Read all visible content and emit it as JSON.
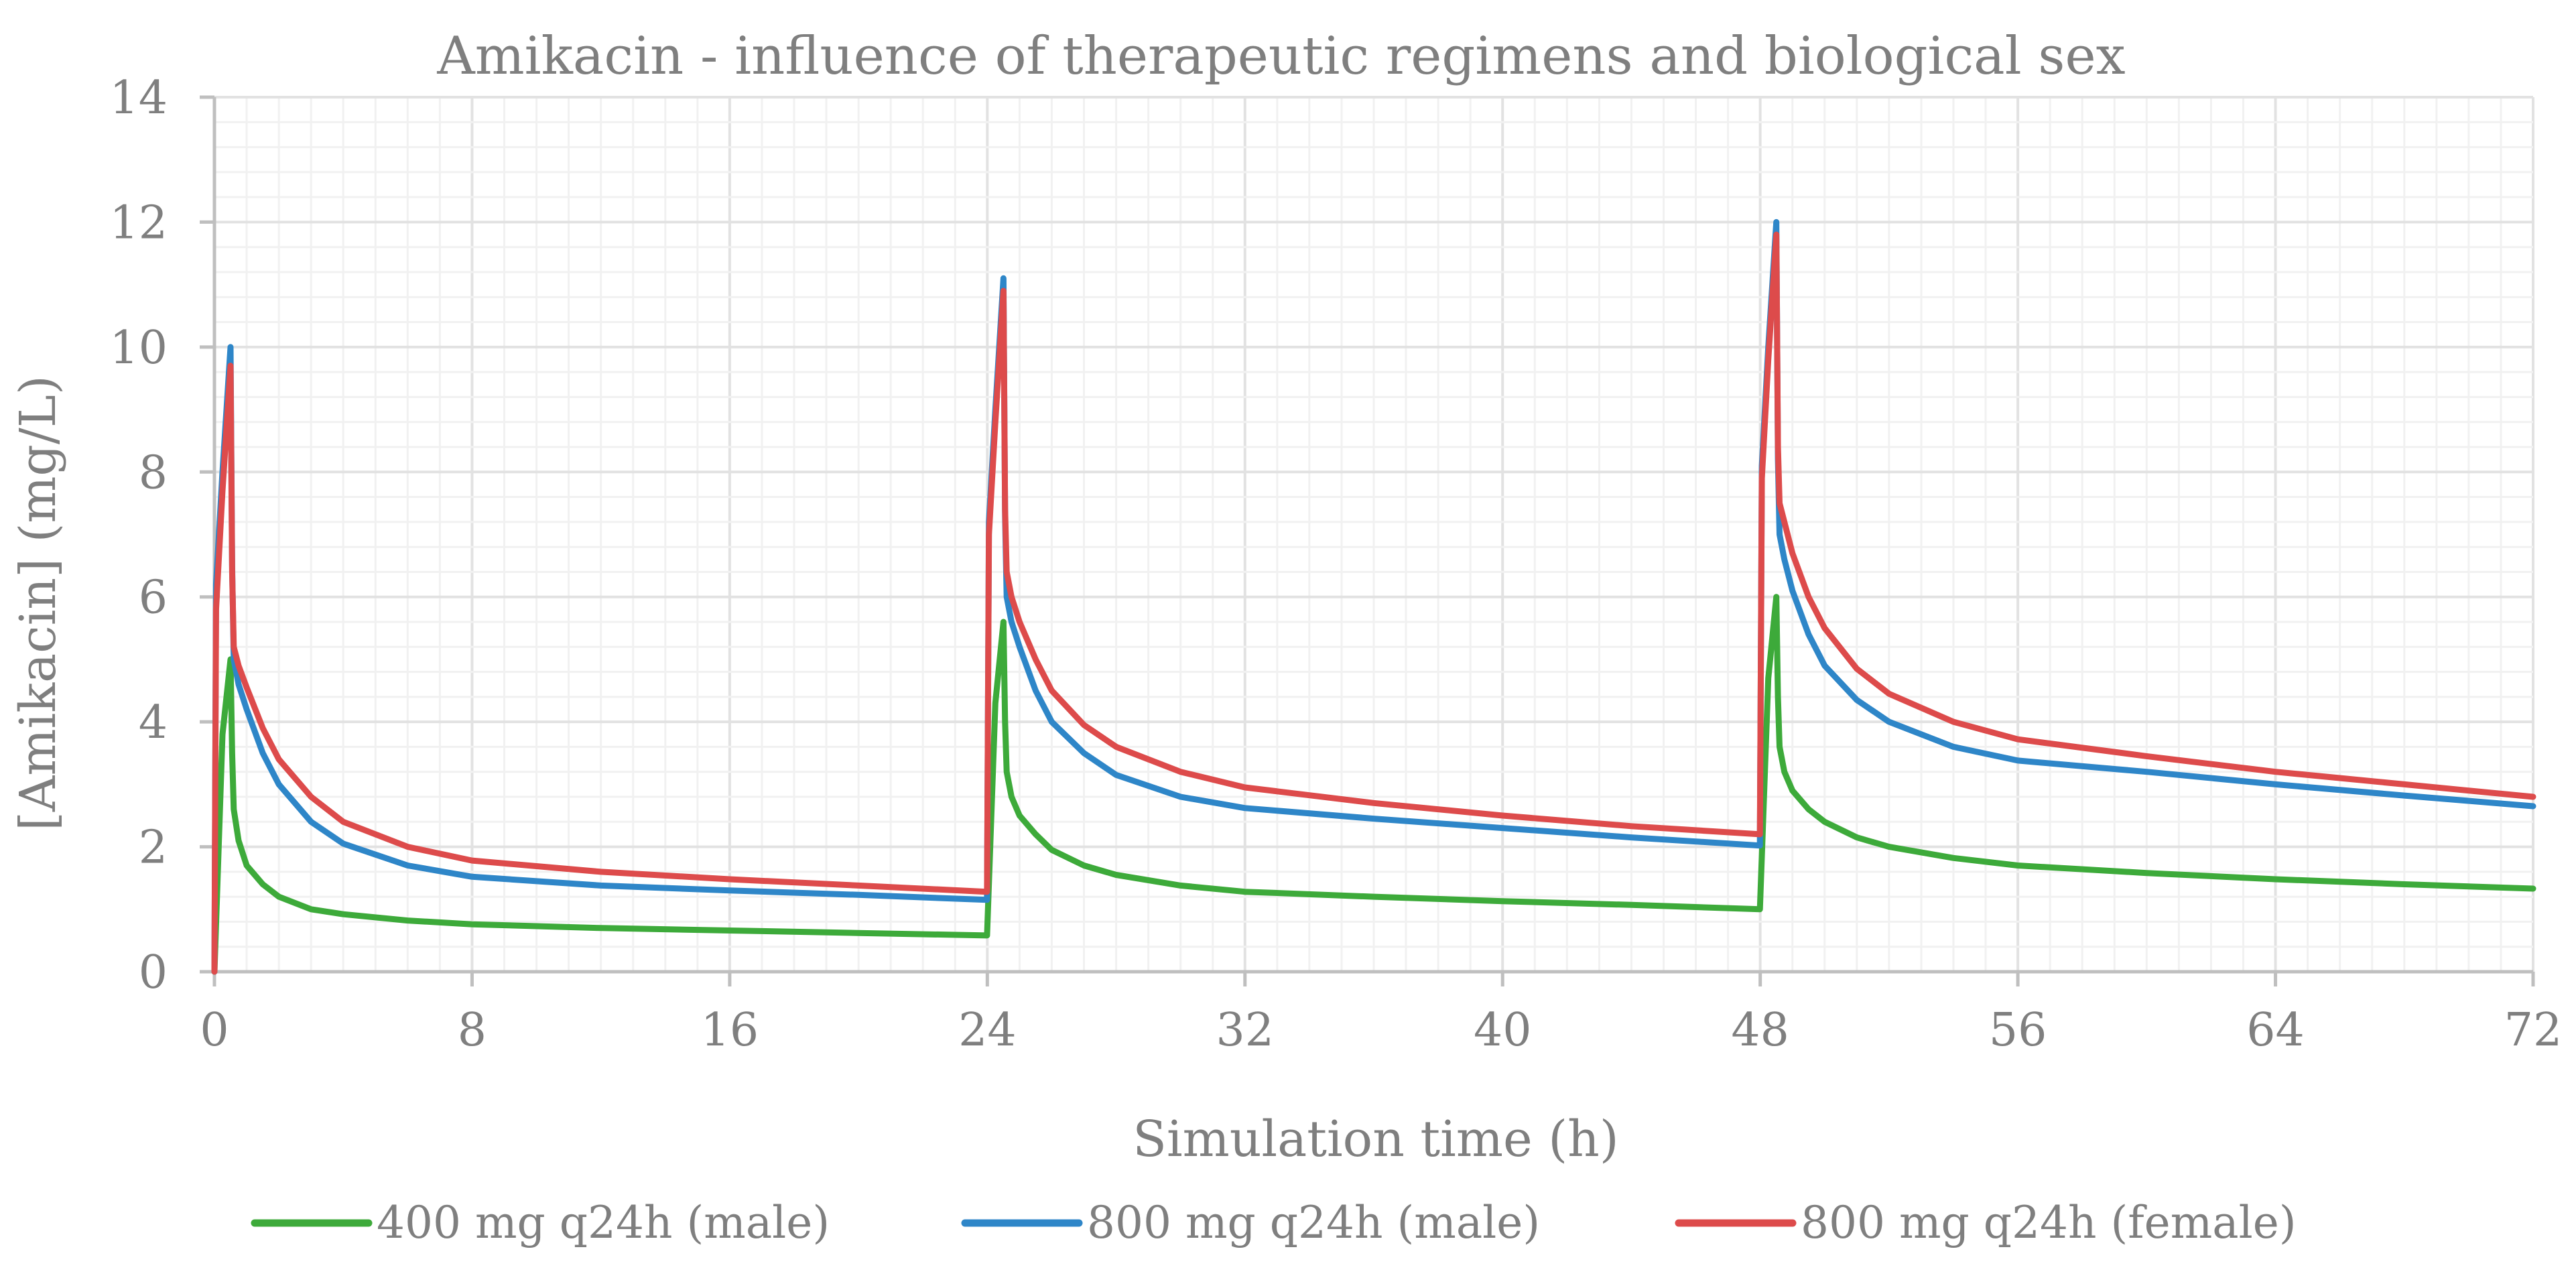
{
  "chart_data": {
    "type": "line",
    "title": "Amikacin - influence of therapeutic regimens and biological sex",
    "xlabel": "Simulation time (h)",
    "ylabel": "[Amikacin] (mg/L)",
    "xlim": [
      0,
      72
    ],
    "ylim": [
      0,
      14
    ],
    "xticks": [
      0,
      8,
      16,
      24,
      32,
      40,
      48,
      56,
      64,
      72
    ],
    "yticks": [
      0,
      2,
      4,
      6,
      8,
      10,
      12,
      14
    ],
    "x_tick_labels": [
      "0",
      "8",
      "16",
      "24",
      "32",
      "40",
      "48",
      "56",
      "64",
      "72"
    ],
    "y_tick_labels": [
      "0",
      "2",
      "4",
      "6",
      "8",
      "10",
      "12",
      "14"
    ],
    "grid": true,
    "legend_position": "bottom",
    "series": [
      {
        "name": "400 mg q24h (male)",
        "color": "#3daa3a",
        "x": [
          0,
          0.25,
          0.5,
          0.55,
          0.6,
          0.75,
          1,
          1.5,
          2,
          3,
          4,
          6,
          8,
          12,
          16,
          20,
          23.99,
          24.25,
          24.5,
          24.55,
          24.6,
          24.75,
          25,
          25.5,
          26,
          27,
          28,
          30,
          32,
          36,
          40,
          44,
          47.99,
          48.25,
          48.5,
          48.55,
          48.6,
          48.75,
          49,
          49.5,
          50,
          51,
          52,
          54,
          56,
          60,
          64,
          68,
          72
        ],
        "y": [
          0,
          3.8,
          5.0,
          3.5,
          2.6,
          2.1,
          1.7,
          1.4,
          1.2,
          1.0,
          0.92,
          0.82,
          0.76,
          0.7,
          0.66,
          0.62,
          0.58,
          4.3,
          5.6,
          4.0,
          3.2,
          2.8,
          2.5,
          2.2,
          1.95,
          1.7,
          1.55,
          1.38,
          1.28,
          1.2,
          1.13,
          1.07,
          1.0,
          4.7,
          6.0,
          4.4,
          3.6,
          3.2,
          2.9,
          2.6,
          2.4,
          2.15,
          2.0,
          1.82,
          1.7,
          1.58,
          1.48,
          1.4,
          1.33
        ]
      },
      {
        "name": "800 mg q24h (male)",
        "color": "#2e86c8",
        "x": [
          0,
          0.05,
          0.25,
          0.5,
          0.55,
          0.6,
          0.75,
          1,
          1.5,
          2,
          3,
          4,
          6,
          8,
          12,
          16,
          20,
          23.99,
          24.05,
          24.25,
          24.5,
          24.55,
          24.6,
          24.75,
          25,
          25.5,
          26,
          27,
          28,
          30,
          32,
          36,
          40,
          44,
          47.99,
          48.05,
          48.25,
          48.5,
          48.55,
          48.6,
          48.75,
          49,
          49.5,
          50,
          51,
          52,
          54,
          56,
          60,
          64,
          68,
          72
        ],
        "y": [
          0,
          6.2,
          8.0,
          10.0,
          6.5,
          5.0,
          4.6,
          4.2,
          3.5,
          3.0,
          2.4,
          2.05,
          1.7,
          1.52,
          1.38,
          1.3,
          1.23,
          1.15,
          7.2,
          9.0,
          11.1,
          7.3,
          6.0,
          5.6,
          5.2,
          4.5,
          4.0,
          3.5,
          3.15,
          2.8,
          2.62,
          2.45,
          2.3,
          2.15,
          2.02,
          8.1,
          10.0,
          12.0,
          8.2,
          7.0,
          6.6,
          6.1,
          5.4,
          4.9,
          4.35,
          4.0,
          3.6,
          3.38,
          3.2,
          3.0,
          2.82,
          2.65
        ]
      },
      {
        "name": "800 mg q24h (female)",
        "color": "#dd4b4b",
        "x": [
          0,
          0.05,
          0.25,
          0.5,
          0.55,
          0.6,
          0.75,
          1,
          1.5,
          2,
          3,
          4,
          6,
          8,
          12,
          16,
          20,
          23.99,
          24.05,
          24.25,
          24.5,
          24.55,
          24.6,
          24.75,
          25,
          25.5,
          26,
          27,
          28,
          30,
          32,
          36,
          40,
          44,
          47.99,
          48.05,
          48.25,
          48.5,
          48.55,
          48.6,
          48.75,
          49,
          49.5,
          50,
          51,
          52,
          54,
          56,
          60,
          64,
          68,
          72
        ],
        "y": [
          0,
          5.8,
          7.7,
          9.7,
          6.4,
          5.2,
          4.9,
          4.55,
          3.9,
          3.4,
          2.8,
          2.4,
          2.0,
          1.78,
          1.6,
          1.48,
          1.38,
          1.28,
          7.0,
          8.8,
          10.9,
          7.4,
          6.4,
          6.0,
          5.6,
          5.0,
          4.5,
          3.95,
          3.6,
          3.2,
          2.95,
          2.7,
          2.5,
          2.33,
          2.2,
          7.9,
          9.8,
          11.8,
          8.4,
          7.5,
          7.2,
          6.7,
          6.0,
          5.5,
          4.85,
          4.45,
          4.0,
          3.72,
          3.45,
          3.2,
          3.0,
          2.8
        ]
      }
    ]
  }
}
